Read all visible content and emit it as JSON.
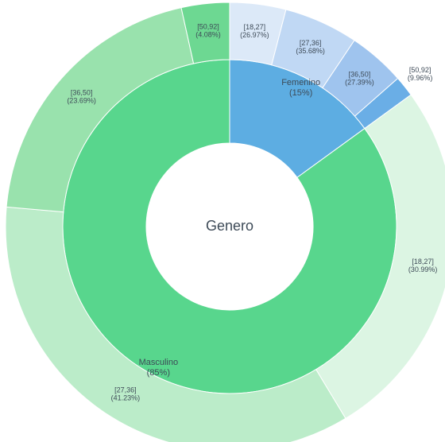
{
  "chart_data": {
    "type": "sunburst",
    "title": "Genero",
    "nodes": [
      {
        "name": "Femenino",
        "value": 15,
        "value_label": "(15%)",
        "color": "#5dade2",
        "children": [
          {
            "name": "[18,27]",
            "value": 26.97,
            "value_label": "(26.97%)",
            "color": "#dce9f8"
          },
          {
            "name": "[27,36]",
            "value": 35.68,
            "value_label": "(35.68%)",
            "color": "#c0d8f4"
          },
          {
            "name": "[36,50]",
            "value": 27.39,
            "value_label": "(27.39%)",
            "color": "#9fc4ee"
          },
          {
            "name": "[50,92]",
            "value": 9.96,
            "value_label": "(9.96%)",
            "color": "#6aaee6"
          }
        ]
      },
      {
        "name": "Masculino",
        "value": 85,
        "value_label": "(85%)",
        "color": "#58d68d",
        "children": [
          {
            "name": "[18,27]",
            "value": 30.99,
            "value_label": "(30.99%)",
            "color": "#dcf5e3"
          },
          {
            "name": "[27,36]",
            "value": 41.23,
            "value_label": "(41.23%)",
            "color": "#bbecc9"
          },
          {
            "name": "[36,50]",
            "value": 23.69,
            "value_label": "(23.69%)",
            "color": "#99e2ad"
          },
          {
            "name": "[50,92]",
            "value": 4.08,
            "value_label": "(4.08%)",
            "color": "#6dd892"
          }
        ]
      }
    ]
  }
}
